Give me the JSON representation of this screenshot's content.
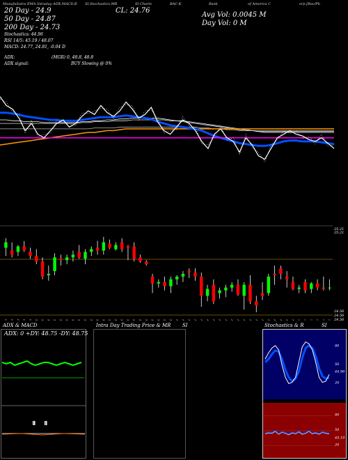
{
  "header": {
    "seg1": "MunafaSutra EMA Intraday ADX,MACD,B",
    "seg2": "SI,Stochastics,MR",
    "seg3": "SI Charts",
    "seg4": "BAC-K",
    "seg5": "Bank",
    "seg6": "of America C",
    "seg7": "orp [Bac/Pb"
  },
  "overlay": {
    "close": "CL: 24.76",
    "ema20": "20 Day - 24.9",
    "ema50": "50 Day - 24.87",
    "ema200": "200 Day - 24.73",
    "avg_vol": "Avg Vol: 0.0045 M",
    "day_vol": "Day Vol: 0  M",
    "stoch": "Stochastics: 44.96",
    "rsi": "RSI 14/5: 45.19 / 48.07",
    "macd": "MACD: 24.77, 24.81, -0.04  D",
    "adx": "ADX:",
    "mgr": "(MGR) 0, 48.8, 48.8",
    "adx_signal": "ADX  signal:",
    "buy_slowing": "BUY Slowing @ 0%"
  },
  "candle_axis": {
    "top1": "25.21",
    "top2": "25.21",
    "bot1": "24.56",
    "bot2": "24.56",
    "bot3": "24.56"
  },
  "dates": [
    "24 Sep",
    "25 Sep",
    "26 Sep",
    "27 Sep",
    "30 Sep",
    "01 Oct",
    "02 Oct",
    "03 Oct",
    "04 Oct",
    "07 Oct",
    "08 Oct",
    "09 Oct",
    "10 Oct",
    "11 Oct",
    "14 Oct",
    "15 Oct",
    "16 Oct",
    "17 Oct",
    "18 Oct",
    "21 Oct",
    "22 Oct",
    "23 Oct",
    "24 Oct",
    "25 Oct",
    "28 Oct",
    "29 Oct",
    "30 Oct",
    "31 Oct",
    "01 Nov",
    "04 Nov",
    "05 Nov",
    "06 Nov",
    "07 Nov",
    "08 Nov",
    "11 Nov",
    "12 Nov",
    "13 Nov",
    "14 Nov",
    "15 Nov",
    "18 Nov",
    "19 Nov",
    "20 Nov",
    "21 Nov",
    "22 Nov",
    "25 Nov",
    "26 Nov",
    "27 Nov",
    "29 Nov",
    "02 Dec",
    "03 Dec",
    "04 Dec",
    "05 Dec",
    "06 Dec",
    "09 Dec"
  ],
  "panels": {
    "adx_title": "ADX  & MACD",
    "adx_values": "ADX: 0  +DY: 48.75  -DY: 48.75",
    "intraday_title": "Intra  Day Trading Price  & MR",
    "intraday_si": "SI",
    "stoch_title": "Stochastics & R",
    "stoch_si": "SI",
    "stoch_labels": [
      "80",
      "50",
      "44.96",
      "20"
    ],
    "rsi_labels": [
      "80",
      "50",
      "45.19",
      "20"
    ]
  },
  "colors": {
    "up": "#00ff00",
    "down": "#ff0000",
    "ema_blue": "#0050ff",
    "ema_orange": "#ff9900",
    "magenta": "#ff00ff",
    "rsi_bg": "#8b0000"
  },
  "chart_data": {
    "type": "candlestick",
    "title": "BAC-K Bank of America Corp [Bac/Pb",
    "ylim": [
      24.56,
      25.21
    ],
    "close_last": 24.76,
    "ema": {
      "20": 24.9,
      "50": 24.87,
      "200": 24.73
    },
    "candles": [
      {
        "o": 25.05,
        "h": 25.12,
        "l": 24.99,
        "c": 25.09
      },
      {
        "o": 25.03,
        "h": 25.09,
        "l": 24.98,
        "c": 25.0
      },
      {
        "o": 25.02,
        "h": 25.07,
        "l": 24.99,
        "c": 25.06
      },
      {
        "o": 25.06,
        "h": 25.1,
        "l": 25.02,
        "c": 25.03
      },
      {
        "o": 25.02,
        "h": 25.05,
        "l": 24.97,
        "c": 24.99
      },
      {
        "o": 24.99,
        "h": 25.04,
        "l": 24.93,
        "c": 24.95
      },
      {
        "o": 24.95,
        "h": 24.98,
        "l": 24.82,
        "c": 24.84
      },
      {
        "o": 24.85,
        "h": 24.92,
        "l": 24.81,
        "c": 24.86
      },
      {
        "o": 24.88,
        "h": 25.01,
        "l": 24.85,
        "c": 24.98
      },
      {
        "o": 24.97,
        "h": 25.0,
        "l": 24.92,
        "c": 24.96
      },
      {
        "o": 24.96,
        "h": 25.0,
        "l": 24.93,
        "c": 24.98
      },
      {
        "o": 24.98,
        "h": 25.03,
        "l": 24.95,
        "c": 25.0
      },
      {
        "o": 25.02,
        "h": 25.07,
        "l": 24.97,
        "c": 24.98
      },
      {
        "o": 24.97,
        "h": 25.04,
        "l": 24.93,
        "c": 25.02
      },
      {
        "o": 25.02,
        "h": 25.06,
        "l": 24.99,
        "c": 25.04
      },
      {
        "o": 25.05,
        "h": 25.1,
        "l": 25.0,
        "c": 25.03
      },
      {
        "o": 25.03,
        "h": 25.13,
        "l": 25.0,
        "c": 25.09
      },
      {
        "o": 25.08,
        "h": 25.11,
        "l": 25.04,
        "c": 25.05
      },
      {
        "o": 25.04,
        "h": 25.09,
        "l": 25.03,
        "c": 25.07
      },
      {
        "o": 25.09,
        "h": 25.12,
        "l": 25.02,
        "c": 25.04
      },
      {
        "o": 25.06,
        "h": 25.07,
        "l": 24.96,
        "c": 25.05
      },
      {
        "o": 25.06,
        "h": 25.09,
        "l": 24.95,
        "c": 24.97
      },
      {
        "o": 24.98,
        "h": 25.0,
        "l": 24.94,
        "c": 24.95
      },
      {
        "o": 24.95,
        "h": 24.96,
        "l": 24.92,
        "c": 24.93
      },
      {
        "o": 24.84,
        "h": 24.86,
        "l": 24.72,
        "c": 24.79
      },
      {
        "o": 24.79,
        "h": 24.82,
        "l": 24.76,
        "c": 24.8
      },
      {
        "o": 24.8,
        "h": 24.84,
        "l": 24.74,
        "c": 24.77
      },
      {
        "o": 24.77,
        "h": 24.84,
        "l": 24.72,
        "c": 24.82
      },
      {
        "o": 24.82,
        "h": 24.85,
        "l": 24.78,
        "c": 24.84
      },
      {
        "o": 24.84,
        "h": 24.88,
        "l": 24.8,
        "c": 24.86
      },
      {
        "o": 24.88,
        "h": 24.9,
        "l": 24.83,
        "c": 24.87
      },
      {
        "o": 24.87,
        "h": 24.9,
        "l": 24.81,
        "c": 24.84
      },
      {
        "o": 24.84,
        "h": 24.87,
        "l": 24.62,
        "c": 24.7
      },
      {
        "o": 24.7,
        "h": 24.78,
        "l": 24.66,
        "c": 24.75
      },
      {
        "o": 24.78,
        "h": 24.82,
        "l": 24.64,
        "c": 24.66
      },
      {
        "o": 24.72,
        "h": 24.76,
        "l": 24.68,
        "c": 24.74
      },
      {
        "o": 24.74,
        "h": 24.78,
        "l": 24.69,
        "c": 24.76
      },
      {
        "o": 24.76,
        "h": 24.8,
        "l": 24.73,
        "c": 24.78
      },
      {
        "o": 24.78,
        "h": 24.82,
        "l": 24.7,
        "c": 24.71
      },
      {
        "o": 24.7,
        "h": 24.8,
        "l": 24.6,
        "c": 24.78
      },
      {
        "o": 24.78,
        "h": 24.85,
        "l": 24.64,
        "c": 24.66
      },
      {
        "o": 24.66,
        "h": 24.7,
        "l": 24.58,
        "c": 24.63
      },
      {
        "o": 24.72,
        "h": 24.8,
        "l": 24.67,
        "c": 24.7
      },
      {
        "o": 24.72,
        "h": 24.86,
        "l": 24.7,
        "c": 24.84
      },
      {
        "o": 24.86,
        "h": 24.92,
        "l": 24.78,
        "c": 24.85
      },
      {
        "o": 24.9,
        "h": 24.92,
        "l": 24.82,
        "c": 24.86
      },
      {
        "o": 24.84,
        "h": 24.88,
        "l": 24.76,
        "c": 24.82
      },
      {
        "o": 24.8,
        "h": 24.84,
        "l": 24.74,
        "c": 24.75
      },
      {
        "o": 24.75,
        "h": 24.78,
        "l": 24.72,
        "c": 24.76
      },
      {
        "o": 24.8,
        "h": 24.82,
        "l": 24.72,
        "c": 24.74
      },
      {
        "o": 24.75,
        "h": 24.8,
        "l": 24.72,
        "c": 24.79
      },
      {
        "o": 24.79,
        "h": 24.82,
        "l": 24.74,
        "c": 24.76
      },
      {
        "o": 24.76,
        "h": 24.84,
        "l": 24.74,
        "c": 24.75
      },
      {
        "o": 24.76,
        "h": 24.82,
        "l": 24.74,
        "c": 24.76
      }
    ],
    "close_line": [
      25.05,
      25.0,
      24.98,
      24.93,
      24.86,
      24.9,
      24.84,
      24.82,
      24.86,
      24.9,
      24.92,
      24.88,
      24.9,
      24.94,
      24.97,
      24.95,
      25.0,
      24.96,
      24.94,
      24.97,
      25.02,
      24.98,
      24.93,
      24.95,
      24.99,
      24.91,
      24.86,
      24.84,
      24.88,
      24.92,
      24.9,
      24.86,
      24.8,
      24.76,
      24.84,
      24.87,
      24.82,
      24.8,
      24.74,
      24.82,
      24.78,
      24.72,
      24.7,
      24.76,
      24.82,
      24.84,
      24.86,
      24.84,
      24.83,
      24.81,
      24.8,
      24.82,
      24.79,
      24.76
    ],
    "ema_blue": [
      24.96,
      24.96,
      24.955,
      24.95,
      24.94,
      24.935,
      24.93,
      24.925,
      24.92,
      24.92,
      24.915,
      24.915,
      24.915,
      24.92,
      24.925,
      24.93,
      24.935,
      24.935,
      24.935,
      24.94,
      24.945,
      24.94,
      24.935,
      24.93,
      24.925,
      24.91,
      24.9,
      24.89,
      24.885,
      24.88,
      24.875,
      24.87,
      24.86,
      24.845,
      24.83,
      24.82,
      24.81,
      24.8,
      24.79,
      24.785,
      24.78,
      24.775,
      24.775,
      24.78,
      24.79,
      24.8,
      24.805,
      24.805,
      24.8,
      24.8,
      24.8,
      24.795,
      24.79,
      24.785
    ],
    "ema_orange": [
      24.78,
      24.785,
      24.79,
      24.795,
      24.8,
      24.805,
      24.81,
      24.815,
      24.82,
      24.825,
      24.83,
      24.835,
      24.84,
      24.845,
      24.85,
      24.85,
      24.855,
      24.86,
      24.86,
      24.865,
      24.87,
      24.87,
      24.87,
      24.87,
      24.87,
      24.87,
      24.87,
      24.87,
      24.87,
      24.87,
      24.87,
      24.87,
      24.87,
      24.87,
      24.87,
      24.87,
      24.87,
      24.87,
      24.87,
      24.87,
      24.87,
      24.87,
      24.87,
      24.87,
      24.87,
      24.87,
      24.87,
      24.87,
      24.87,
      24.87,
      24.87,
      24.87,
      24.87,
      24.87
    ],
    "ema_white1": [
      24.92,
      24.92,
      24.915,
      24.915,
      24.91,
      24.91,
      24.91,
      24.905,
      24.905,
      24.905,
      24.905,
      24.905,
      24.905,
      24.91,
      24.91,
      24.915,
      24.915,
      24.92,
      24.92,
      24.925,
      24.925,
      24.93,
      24.93,
      24.93,
      24.93,
      24.93,
      24.925,
      24.92,
      24.915,
      24.915,
      24.91,
      24.905,
      24.9,
      24.895,
      24.89,
      24.885,
      24.88,
      24.875,
      24.87,
      24.865,
      24.86,
      24.855,
      24.85,
      24.85,
      24.85,
      24.85,
      24.85,
      24.85,
      24.85,
      24.85,
      24.85,
      24.85,
      24.85,
      24.85
    ],
    "ema_white2": [
      24.9,
      24.9,
      24.9,
      24.9,
      24.9,
      24.9,
      24.9,
      24.9,
      24.9,
      24.9,
      24.9,
      24.9,
      24.9,
      24.905,
      24.905,
      24.91,
      24.91,
      24.91,
      24.915,
      24.915,
      24.915,
      24.92,
      24.92,
      24.92,
      24.92,
      24.92,
      24.92,
      24.915,
      24.915,
      24.91,
      24.905,
      24.9,
      24.895,
      24.89,
      24.885,
      24.88,
      24.875,
      24.87,
      24.865,
      24.86,
      24.86,
      24.855,
      24.855,
      24.855,
      24.855,
      24.855,
      24.855,
      24.855,
      24.855,
      24.855,
      24.855,
      24.855,
      24.855,
      24.855
    ],
    "ema_white3": [
      24.87,
      24.87,
      24.87,
      24.87,
      24.87,
      24.87,
      24.87,
      24.87,
      24.87,
      24.87,
      24.87,
      24.87,
      24.87,
      24.87,
      24.87,
      24.875,
      24.875,
      24.875,
      24.875,
      24.88,
      24.88,
      24.88,
      24.88,
      24.88,
      24.88,
      24.88,
      24.88,
      24.88,
      24.88,
      24.88,
      24.88,
      24.88,
      24.875,
      24.875,
      24.87,
      24.87,
      24.865,
      24.865,
      24.86,
      24.86,
      24.86,
      24.86,
      24.86,
      24.86,
      24.86,
      24.86,
      24.86,
      24.86,
      24.86,
      24.86,
      24.86,
      24.86,
      24.86,
      24.86
    ],
    "stoch_k": [
      60,
      70,
      78,
      82,
      75,
      50,
      30,
      20,
      22,
      30,
      55,
      80,
      88,
      85,
      75,
      55,
      30,
      22,
      24,
      35
    ],
    "stoch_d": [
      55,
      60,
      68,
      74,
      72,
      60,
      42,
      30,
      24,
      28,
      40,
      62,
      78,
      82,
      78,
      65,
      45,
      32,
      28,
      30
    ],
    "rsi": [
      45,
      47,
      46,
      50,
      44,
      48,
      46,
      43,
      47,
      45,
      49,
      44,
      46,
      50,
      45,
      47,
      44,
      48,
      46,
      45
    ]
  }
}
